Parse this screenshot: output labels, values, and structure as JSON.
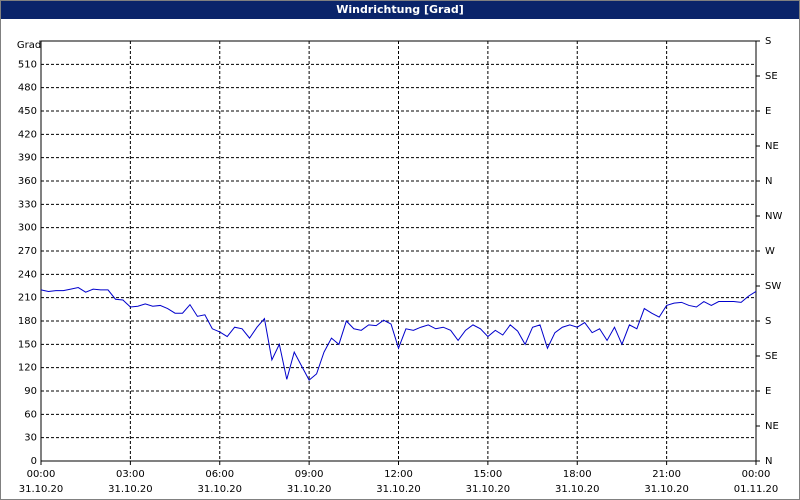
{
  "chart_data": {
    "type": "line",
    "title": "Windrichtung [Grad]",
    "y_label": "Grad",
    "x": [
      0,
      0.25,
      0.5,
      0.75,
      1,
      1.25,
      1.5,
      1.75,
      2,
      2.25,
      2.5,
      2.75,
      3,
      3.25,
      3.5,
      3.75,
      4,
      4.25,
      4.5,
      4.75,
      5,
      5.25,
      5.5,
      5.75,
      6,
      6.25,
      6.5,
      6.75,
      7,
      7.25,
      7.5,
      7.75,
      8,
      8.25,
      8.5,
      8.75,
      9,
      9.25,
      9.5,
      9.75,
      10,
      10.25,
      10.5,
      10.75,
      11,
      11.25,
      11.5,
      11.75,
      12,
      12.25,
      12.5,
      12.75,
      13,
      13.25,
      13.5,
      13.75,
      14,
      14.25,
      14.5,
      14.75,
      15,
      15.25,
      15.5,
      15.75,
      16,
      16.25,
      16.5,
      16.75,
      17,
      17.25,
      17.5,
      17.75,
      18,
      18.25,
      18.5,
      18.75,
      19,
      19.25,
      19.5,
      19.75,
      20,
      20.25,
      20.5,
      20.75,
      21,
      21.25,
      21.5,
      21.75,
      22,
      22.25,
      22.5,
      22.75,
      23,
      23.25,
      23.5,
      23.75,
      24
    ],
    "series": [
      {
        "color": "#0000cc",
        "values": [
          220,
          218,
          219,
          219,
          221,
          223,
          217,
          221,
          220,
          220,
          208,
          207,
          198,
          199,
          202,
          199,
          200,
          196,
          190,
          190,
          201,
          186,
          188,
          170,
          166,
          160,
          172,
          170,
          158,
          172,
          183,
          130,
          150,
          105,
          140,
          122,
          104,
          112,
          140,
          158,
          150,
          180,
          170,
          168,
          175,
          174,
          181,
          176,
          145,
          170,
          168,
          172,
          175,
          170,
          172,
          168,
          155,
          168,
          175,
          170,
          160,
          168,
          162,
          175,
          167,
          150,
          172,
          175,
          145,
          165,
          172,
          175,
          172,
          178,
          165,
          170,
          155,
          172,
          150,
          175,
          170,
          196,
          190,
          185,
          200,
          203,
          204,
          200,
          198,
          205,
          200,
          205,
          205,
          205,
          204,
          212,
          218
        ]
      }
    ],
    "xlim": [
      0,
      24
    ],
    "xticks": [
      {
        "value": 0,
        "label": "00:00"
      },
      {
        "value": 3,
        "label": "03:00"
      },
      {
        "value": 6,
        "label": "06:00"
      },
      {
        "value": 9,
        "label": "09:00"
      },
      {
        "value": 12,
        "label": "12:00"
      },
      {
        "value": 15,
        "label": "15:00"
      },
      {
        "value": 18,
        "label": "18:00"
      },
      {
        "value": 21,
        "label": "21:00"
      },
      {
        "value": 24,
        "label": "00:00"
      }
    ],
    "xtick_dates": [
      "31.10.20",
      "31.10.20",
      "31.10.20",
      "31.10.20",
      "31.10.20",
      "31.10.20",
      "31.10.20",
      "31.10.20",
      "01.11.20"
    ],
    "ylim": [
      0,
      540
    ],
    "yticks": [
      0,
      30,
      60,
      90,
      120,
      150,
      180,
      210,
      240,
      270,
      300,
      330,
      360,
      390,
      420,
      450,
      480,
      510
    ],
    "y2lim": [
      0,
      540
    ],
    "y2ticks": [
      {
        "value": 0,
        "label": "N"
      },
      {
        "value": 45,
        "label": "NE"
      },
      {
        "value": 90,
        "label": "E"
      },
      {
        "value": 135,
        "label": "SE"
      },
      {
        "value": 180,
        "label": "S"
      },
      {
        "value": 225,
        "label": "SW"
      },
      {
        "value": 270,
        "label": "W"
      },
      {
        "value": 315,
        "label": "NW"
      },
      {
        "value": 360,
        "label": "N"
      },
      {
        "value": 405,
        "label": "NE"
      },
      {
        "value": 450,
        "label": "E"
      },
      {
        "value": 495,
        "label": "SE"
      },
      {
        "value": 540,
        "label": "S"
      }
    ],
    "grid": true
  }
}
